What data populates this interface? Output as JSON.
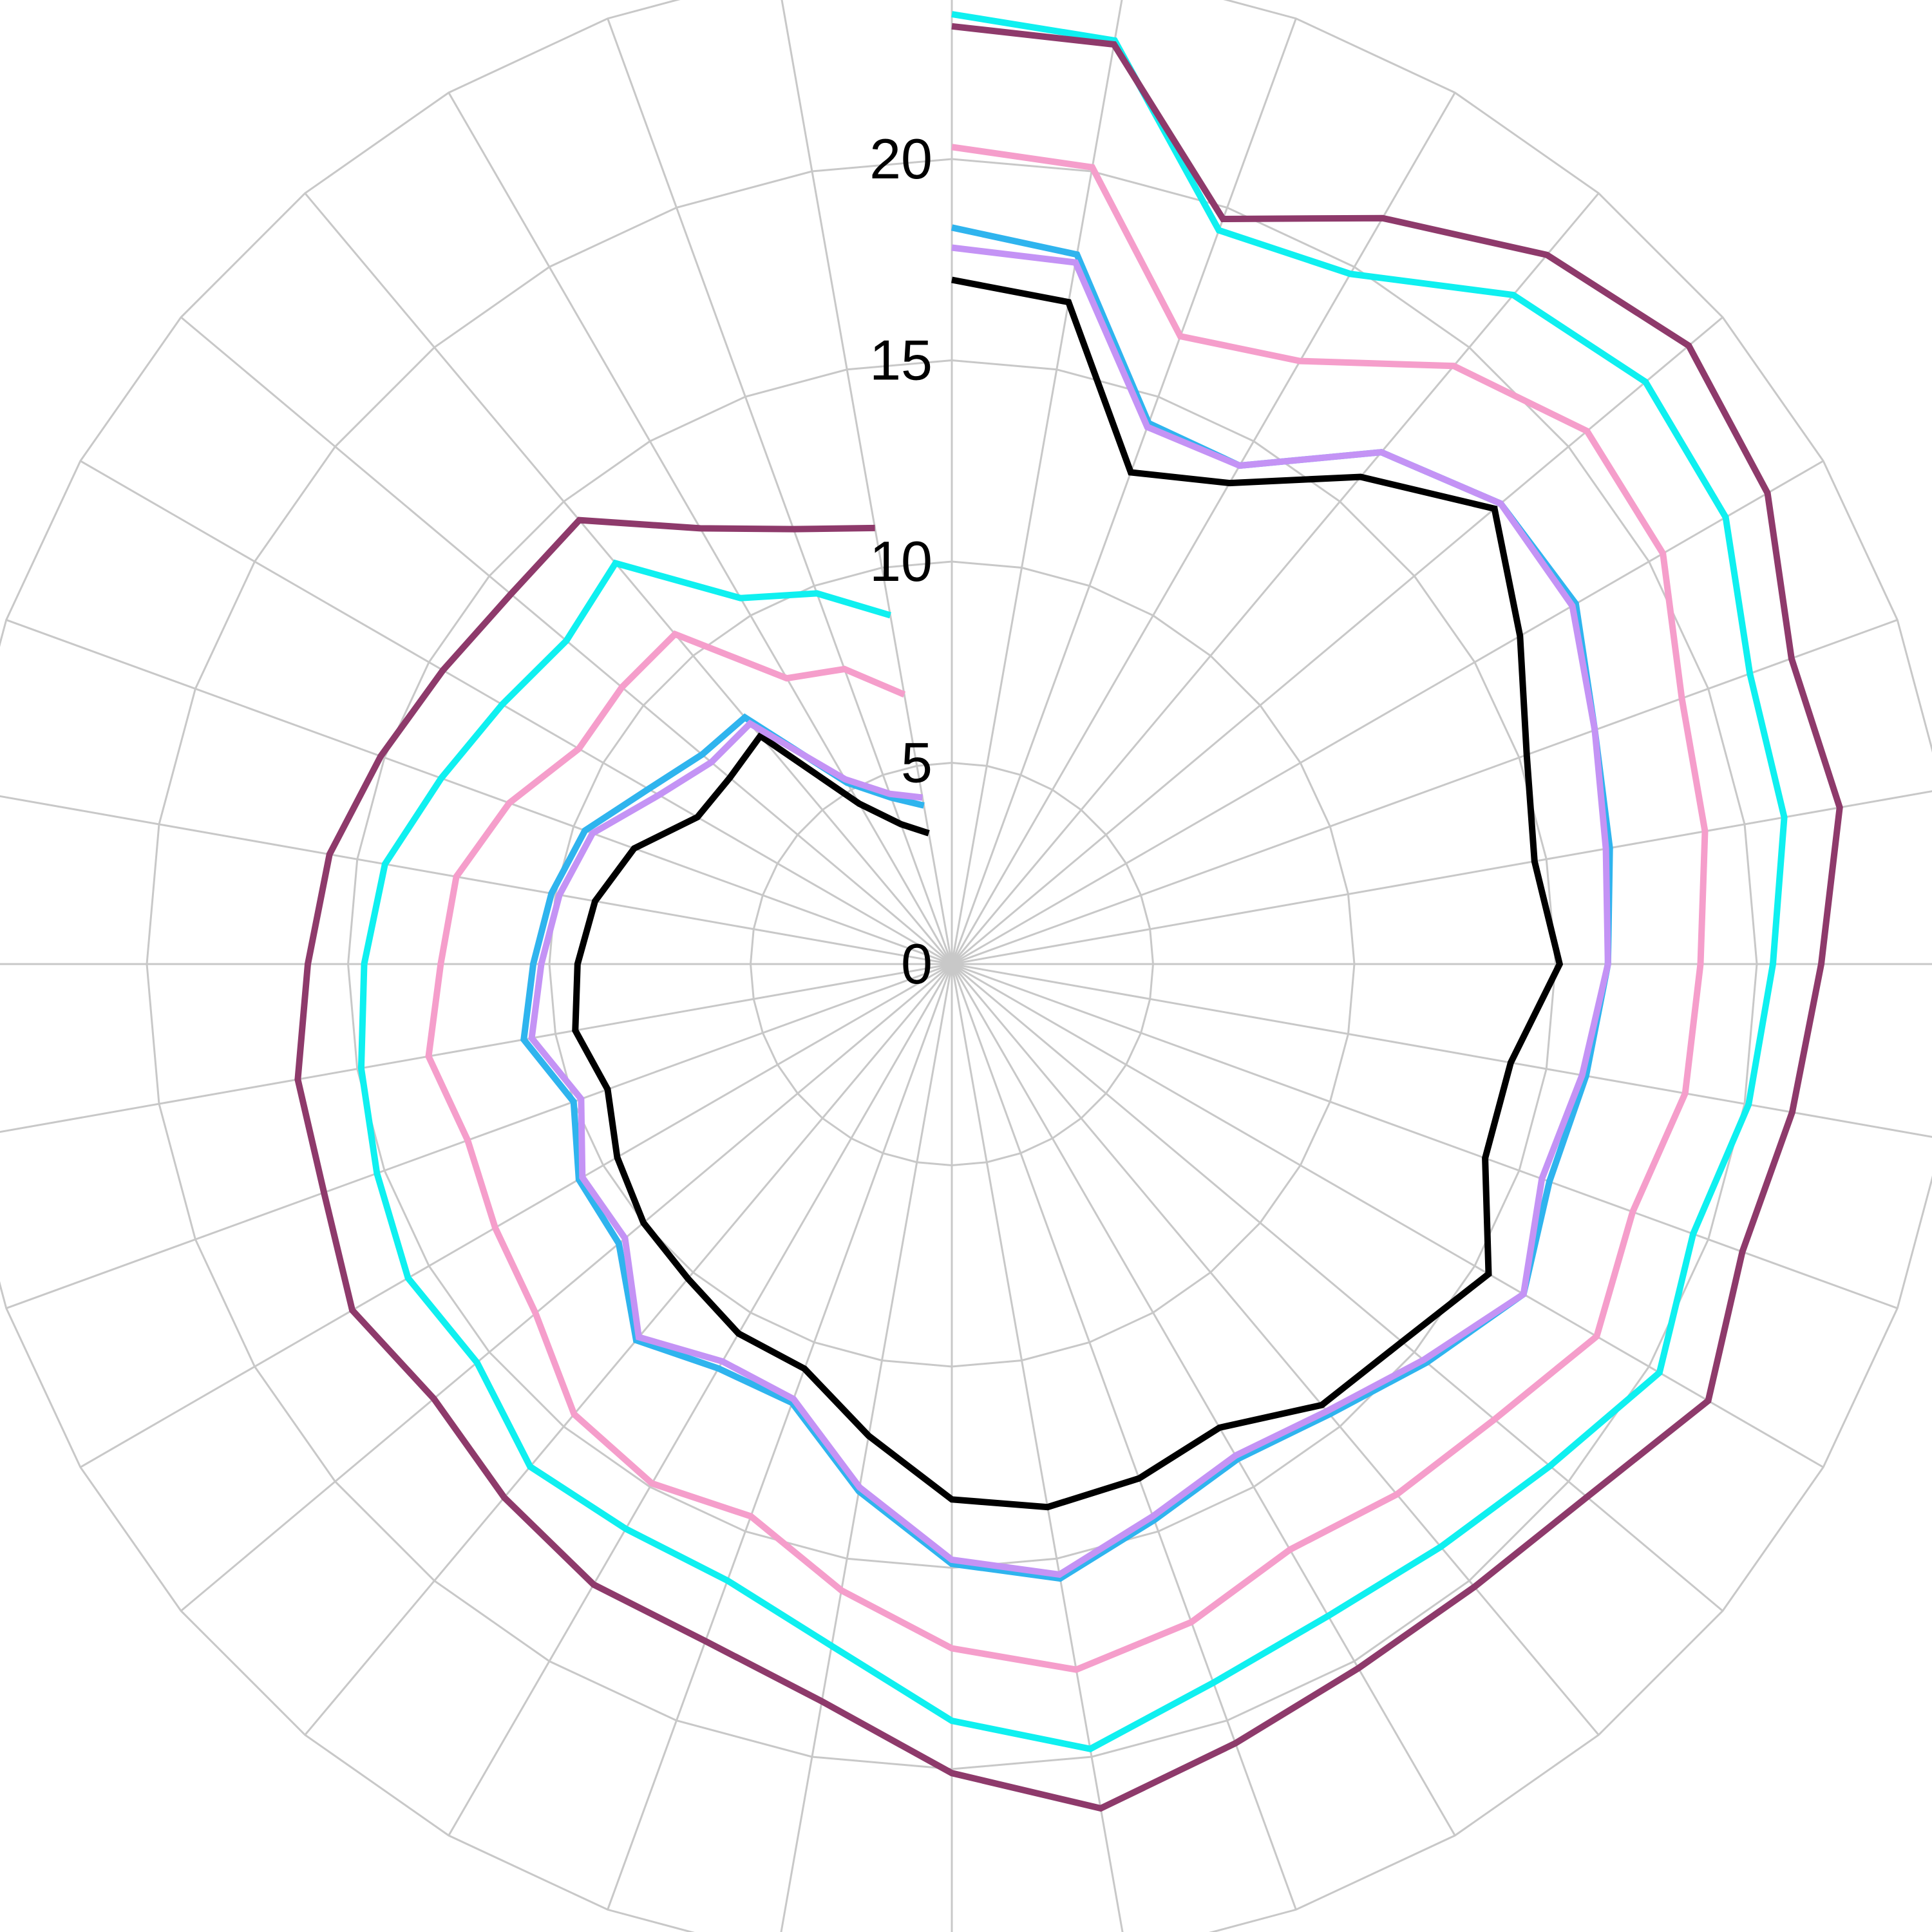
{
  "chart_data": {
    "type": "radar",
    "title": "",
    "radial_axis": {
      "ticks": [
        0,
        5,
        10,
        15,
        20
      ],
      "tick_labels": [
        "0",
        "5",
        "10",
        "15",
        "20"
      ],
      "range": [
        0,
        25
      ],
      "tick_step": 5
    },
    "spokes": 36,
    "grid": true,
    "start_angle_deg": 0,
    "direction": "clockwise",
    "gap_between_last_and_first": true,
    "series": [
      {
        "color": "#000000",
        "values": [
          17,
          16.7,
          13,
          13.8,
          15.8,
          17.6,
          16.3,
          15.2,
          14.7,
          15.1,
          14.1,
          14.1,
          15.4,
          14.6,
          14.3,
          13.3,
          13.6,
          13.7,
          13.3,
          11.9,
          10.7,
          10.6,
          10.2,
          10.0,
          9.6,
          9.1,
          9.5,
          9.3,
          9.0,
          8.4,
          7.3,
          7.2,
          7.4,
          4.6,
          3.7,
          3.3
        ]
      },
      {
        "color": "#2fb4ee",
        "values": [
          18.3,
          17.9,
          14.3,
          14.3,
          16.6,
          17.8,
          17.9,
          17.0,
          16.6,
          16.3,
          16.0,
          15.8,
          16.4,
          15.4,
          14.6,
          14.2,
          14.7,
          15.5,
          14.9,
          13.3,
          11.6,
          11.6,
          12.2,
          10.8,
          10.7,
          10.0,
          10.8,
          10.4,
          10.1,
          9.7,
          8.7,
          8.1,
          8.0,
          5.2,
          4.4,
          4.0
        ]
      },
      {
        "color": "#c493f5",
        "values": [
          17.8,
          17.7,
          14.2,
          14.3,
          16.6,
          17.8,
          17.8,
          17.0,
          16.5,
          16.3,
          15.9,
          15.6,
          16.4,
          15.3,
          14.5,
          14.1,
          14.6,
          15.4,
          14.8,
          13.2,
          11.5,
          11.4,
          12.1,
          10.6,
          10.6,
          9.8,
          10.6,
          10.2,
          9.9,
          9.5,
          8.4,
          7.8,
          7.8,
          5.3,
          4.5,
          4.2
        ]
      },
      {
        "color": "#f59ecb",
        "values": [
          20.3,
          20.1,
          16.6,
          17.3,
          19.4,
          20.6,
          20.4,
          19.3,
          19.0,
          18.6,
          18.5,
          18.0,
          18.5,
          17.6,
          17.2,
          16.8,
          17.4,
          17.8,
          17.0,
          15.8,
          14.6,
          14.9,
          14.6,
          13.5,
          13.1,
          12.8,
          13.2,
          12.7,
          12.5,
          11.7,
          10.7,
          10.7,
          10.7,
          8.2,
          7.8,
          6.8
        ]
      },
      {
        "color": "#0ff0f0",
        "values": [
          23.6,
          23.3,
          19.4,
          19.8,
          21.7,
          22.5,
          22.2,
          21.1,
          21.0,
          20.4,
          20.1,
          19.6,
          20.3,
          19.4,
          18.9,
          18.7,
          19.0,
          19.8,
          18.8,
          17.2,
          16.3,
          16.2,
          16.3,
          15.4,
          15.6,
          15.2,
          14.9,
          14.6,
          14.3,
          13.5,
          12.9,
          12.5,
          13.0,
          10.5,
          9.8,
          8.8
        ]
      },
      {
        "color": "#8e3a6b",
        "values": [
          23.3,
          23.2,
          19.7,
          21.4,
          23.0,
          23.9,
          23.4,
          22.2,
          22.4,
          21.6,
          21.2,
          20.9,
          21.7,
          20.6,
          20.2,
          20.2,
          20.6,
          21.3,
          20.1,
          18.6,
          17.9,
          17.8,
          17.3,
          16.8,
          17.2,
          16.6,
          16.5,
          16.0,
          15.7,
          15.1,
          14.6,
          14.3,
          14.4,
          12.5,
          11.5,
          11.0
        ]
      }
    ]
  }
}
